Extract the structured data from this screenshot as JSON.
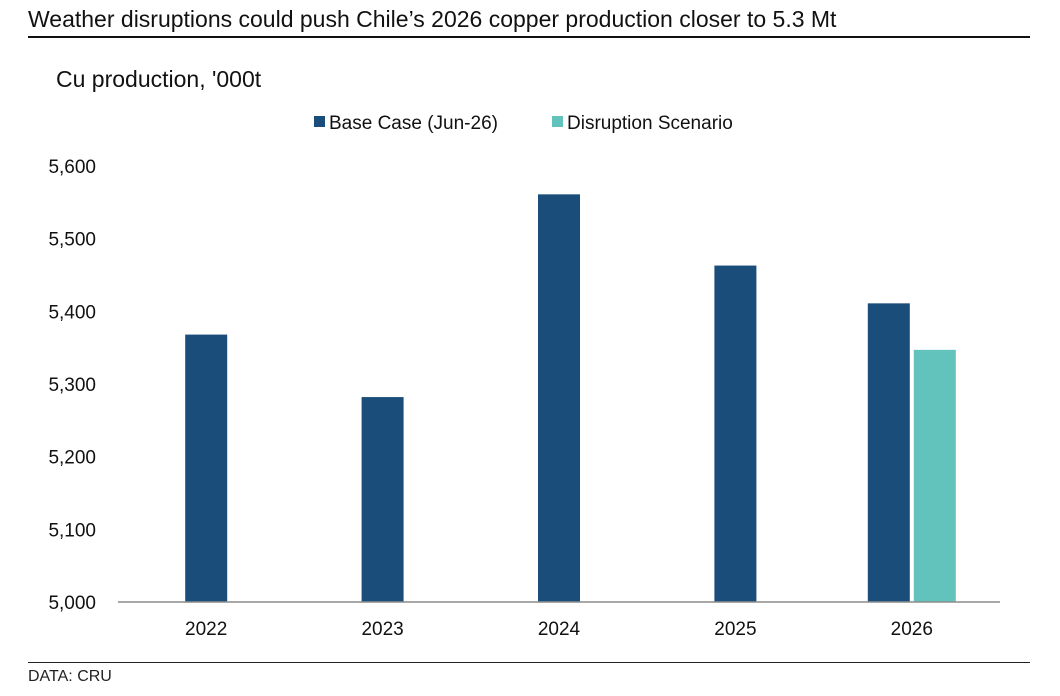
{
  "title": "Weather disruptions could push Chile’s 2026 copper production closer to 5.3 Mt",
  "source": "DATA: CRU",
  "chart_data": {
    "type": "bar",
    "subtitle": "Cu production, '000t",
    "categories": [
      "2022",
      "2023",
      "2024",
      "2025",
      "2026"
    ],
    "series": [
      {
        "name": "Base Case (Jun-26)",
        "color": "#1b4d7a",
        "values": [
          5368,
          5282,
          5561,
          5463,
          5411
        ]
      },
      {
        "name": "Disruption Scenario",
        "color": "#62c2bc",
        "values": [
          null,
          null,
          null,
          null,
          5347
        ]
      }
    ],
    "ylim": [
      5000,
      5600
    ],
    "yticks": [
      5000,
      5100,
      5200,
      5300,
      5400,
      5500,
      5600
    ],
    "ytick_labels": [
      "5,000",
      "5,100",
      "5,200",
      "5,300",
      "5,400",
      "5,500",
      "5,600"
    ],
    "legend_position": "top-center",
    "grid": false
  }
}
